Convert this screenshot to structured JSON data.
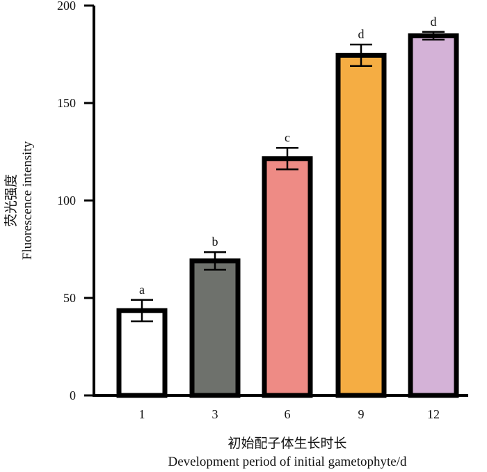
{
  "chart_data": {
    "type": "bar",
    "categories": [
      "1",
      "3",
      "6",
      "9",
      "12"
    ],
    "values": [
      43.5,
      69,
      121.5,
      174.5,
      184.5
    ],
    "errors": [
      5.5,
      4.5,
      5.5,
      5.5,
      2.0
    ],
    "significance": [
      "a",
      "b",
      "c",
      "d",
      "d"
    ],
    "colors": [
      "#ffffff",
      "#6e716c",
      "#ee8b85",
      "#f5ad43",
      "#d4b2d7"
    ],
    "ylim": [
      0,
      200
    ],
    "yticks": [
      "0",
      "50",
      "100",
      "150",
      "200"
    ],
    "ylabel": [
      "荧光强度",
      "Fluorescence intensity"
    ],
    "xlabel": [
      "初始配子体生长时长",
      "Development period of initial gametophyte/d"
    ],
    "grid": false,
    "legend": false
  }
}
